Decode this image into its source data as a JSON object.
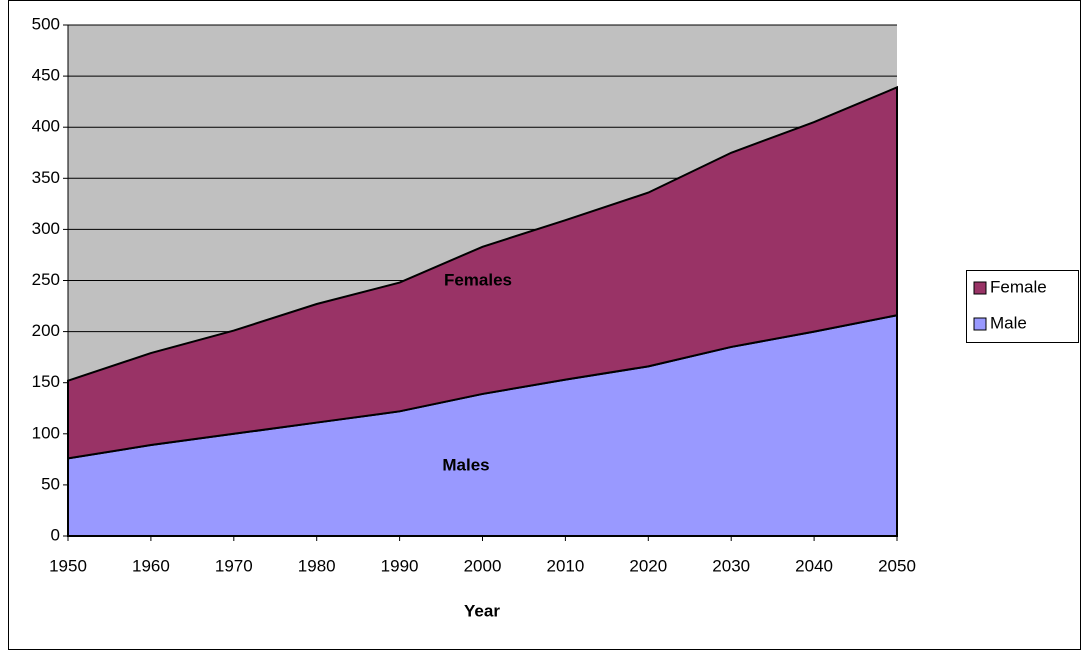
{
  "chart_data": {
    "type": "area",
    "stacked": true,
    "x": [
      1950,
      1960,
      1970,
      1980,
      1990,
      2000,
      2010,
      2020,
      2030,
      2040,
      2050
    ],
    "series": [
      {
        "name": "Male",
        "color": "#9999ff",
        "values": [
          76,
          89,
          100,
          111,
          122,
          139,
          153,
          166,
          185,
          200,
          216
        ]
      },
      {
        "name": "Female",
        "color": "#993366",
        "values": [
          76,
          90,
          101,
          116,
          126,
          144,
          156,
          170,
          190,
          205,
          223
        ]
      }
    ],
    "annotations": [
      "Males",
      "Females"
    ],
    "xlabel": "Year",
    "xlim": [
      1950,
      2050
    ],
    "xticks": [
      1950,
      1960,
      1970,
      1980,
      1990,
      2000,
      2010,
      2020,
      2030,
      2040,
      2050
    ],
    "ylim": [
      0,
      500
    ],
    "yticks": [
      0,
      50,
      100,
      150,
      200,
      250,
      300,
      350,
      400,
      450,
      500
    ],
    "grid": true,
    "plot_background": "#c0c0c0",
    "legend": "right"
  }
}
